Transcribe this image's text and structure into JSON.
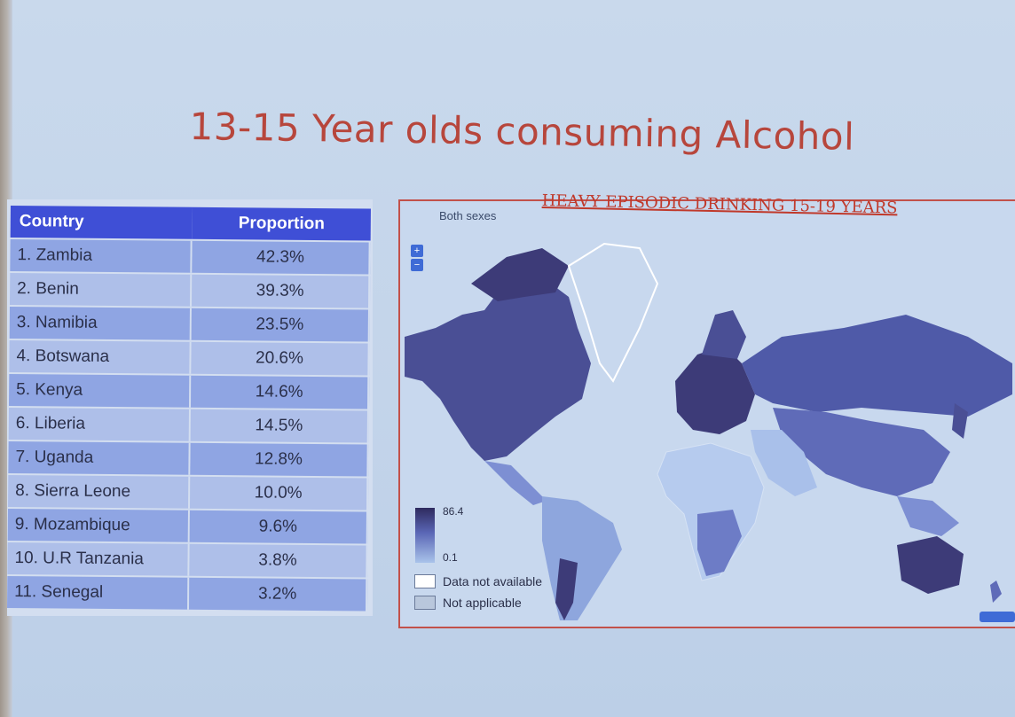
{
  "slide": {
    "title": "13-15 Year olds consuming Alcohol"
  },
  "table": {
    "headers": {
      "country": "Country",
      "proportion": "Proportion"
    },
    "rows": [
      {
        "country": "1.  Zambia",
        "value": "42.3%"
      },
      {
        "country": "2. Benin",
        "value": "39.3%"
      },
      {
        "country": "3. Namibia",
        "value": "23.5%"
      },
      {
        "country": "4. Botswana",
        "value": "20.6%"
      },
      {
        "country": "5. Kenya",
        "value": "14.6%"
      },
      {
        "country": "6. Liberia",
        "value": "14.5%"
      },
      {
        "country": "7. Uganda",
        "value": "12.8%"
      },
      {
        "country": "8. Sierra Leone",
        "value": "10.0%"
      },
      {
        "country": "9. Mozambique",
        "value": "9.6%"
      },
      {
        "country": "10. U.R Tanzania",
        "value": "3.8%"
      },
      {
        "country": "11. Senegal",
        "value": "3.2%"
      }
    ]
  },
  "map": {
    "heading": "HEAVY EPISODIC DRINKING 15-19 YEARS",
    "filter_label": "Both sexes",
    "zoom_in": "+",
    "zoom_out": "−",
    "legend": {
      "max": "86.4",
      "min": "0.1",
      "not_available": "Data not available",
      "not_applicable": "Not applicable"
    },
    "colors": {
      "dark": "#3d3b78",
      "mid": "#5f6bb8",
      "light": "#8ea6dd",
      "pale": "#b6cbee"
    }
  }
}
